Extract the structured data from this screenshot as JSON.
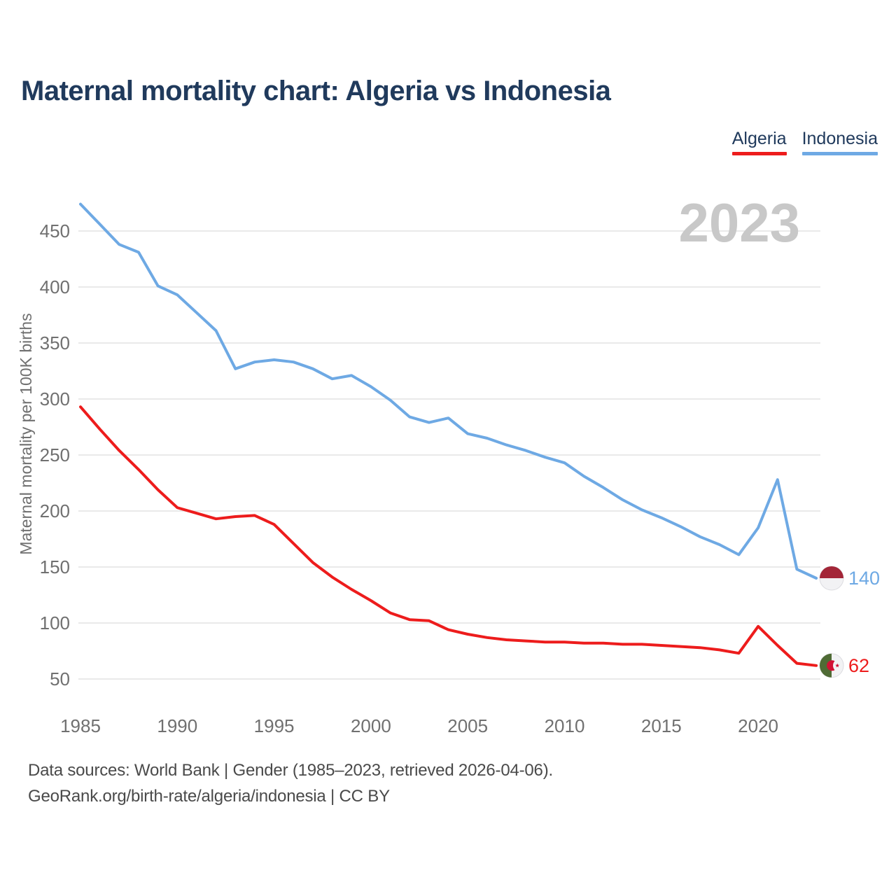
{
  "title": "Maternal mortality chart: Algeria vs Indonesia",
  "watermark_year": "2023",
  "legend": [
    {
      "label": "Algeria",
      "color": "#ED1C1C"
    },
    {
      "label": "Indonesia",
      "color": "#6EA9E4"
    }
  ],
  "footer": {
    "line1": "Data sources: World Bank | Gender (1985–2023, retrieved 2026-04-06).",
    "line2": "GeoRank.org/birth-rate/algeria/indonesia | CC BY"
  },
  "chart_data": {
    "type": "line",
    "title": "Maternal mortality chart: Algeria vs Indonesia",
    "xlabel": "",
    "ylabel": "Maternal mortality per 100K births",
    "x": [
      1985,
      1986,
      1987,
      1988,
      1989,
      1990,
      1991,
      1992,
      1993,
      1994,
      1995,
      1996,
      1997,
      1998,
      1999,
      2000,
      2001,
      2002,
      2003,
      2004,
      2005,
      2006,
      2007,
      2008,
      2009,
      2010,
      2011,
      2012,
      2013,
      2014,
      2015,
      2016,
      2017,
      2018,
      2019,
      2020,
      2021,
      2022,
      2023
    ],
    "series": [
      {
        "name": "Algeria",
        "color": "#ED1C1C",
        "end_label": "62",
        "end_value": 62,
        "values": [
          293,
          273,
          254,
          237,
          219,
          203,
          198,
          193,
          195,
          196,
          188,
          171,
          154,
          141,
          130,
          120,
          109,
          103,
          102,
          94,
          90,
          87,
          85,
          84,
          83,
          83,
          82,
          82,
          81,
          81,
          80,
          79,
          78,
          76,
          73,
          97,
          80,
          64,
          62
        ]
      },
      {
        "name": "Indonesia",
        "color": "#6EA9E4",
        "end_label": "140",
        "end_value": 140,
        "values": [
          474,
          456,
          438,
          431,
          401,
          393,
          377,
          361,
          327,
          333,
          335,
          333,
          327,
          318,
          321,
          311,
          299,
          284,
          279,
          283,
          269,
          265,
          259,
          254,
          248,
          243,
          231,
          221,
          210,
          201,
          194,
          186,
          177,
          170,
          161,
          185,
          228,
          148,
          140
        ]
      }
    ],
    "yticks": [
      50,
      100,
      150,
      200,
      250,
      300,
      350,
      400,
      450
    ],
    "xticks": [
      1985,
      1990,
      1995,
      2000,
      2005,
      2010,
      2015,
      2020
    ],
    "ylim": [
      50,
      475
    ],
    "xlim": [
      1985,
      2023
    ],
    "grid": "horizontal-only",
    "legend_position": "top-right",
    "colors": {
      "grid": "#E9E9E9",
      "tick_text": "#707070",
      "axis_title_text": "#707070",
      "watermark": "#C8C8C8",
      "indonesia_flag_red": "#A32638",
      "algeria_flag_green": "#4F6B35",
      "algeria_flag_emblem_red": "#D21034",
      "flag_white": "#F2F2F4",
      "flag_border": "#DCDCE0"
    }
  }
}
